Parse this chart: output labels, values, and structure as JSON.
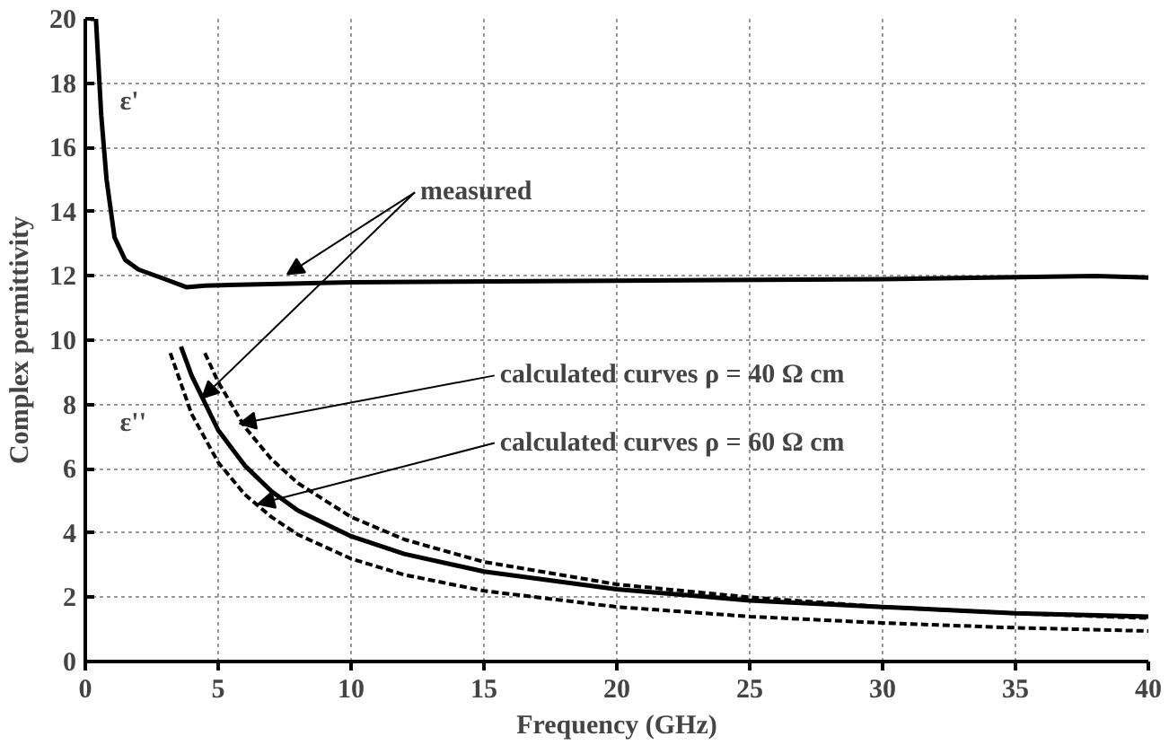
{
  "chart_data": {
    "type": "line",
    "xlabel": "Frequency (GHz)",
    "ylabel": "Complex permittivity",
    "xlim": [
      0,
      40
    ],
    "ylim": [
      0,
      20
    ],
    "xticks": [
      0,
      5,
      10,
      15,
      20,
      25,
      30,
      35,
      40
    ],
    "yticks": [
      0,
      2,
      4,
      6,
      8,
      10,
      12,
      14,
      16,
      18,
      20
    ],
    "grid": true,
    "marker": "none",
    "annotations": [
      "ε'",
      "ε''",
      {
        "text": "measured",
        "x": 7.6,
        "y": 12.05
      },
      {
        "text": "calculated curves ρ = 40 Ω cm",
        "x": 5.8,
        "y": 7.4
      },
      {
        "text": "calculated curves ρ = 60 Ω cm",
        "x": 6.5,
        "y": 4.9
      }
    ],
    "series": [
      {
        "color": "#000000",
        "line_style": "solid",
        "x": [
          0.2,
          0.4,
          0.6,
          0.8,
          1.1,
          1.5,
          2,
          3,
          3.8,
          4.5,
          10,
          20,
          30,
          38,
          40
        ],
        "values": [
          20,
          20,
          17,
          15,
          13.2,
          12.5,
          12.2,
          11.9,
          11.65,
          11.7,
          11.8,
          11.85,
          11.9,
          12,
          11.95
        ]
      },
      {
        "color": "#000000",
        "line_style": "solid",
        "x": [
          3.6,
          4,
          5,
          6,
          7,
          8,
          10,
          12,
          15,
          20,
          25,
          30,
          35,
          40
        ],
        "values": [
          9.8,
          8.9,
          7.2,
          6.1,
          5.3,
          4.7,
          3.9,
          3.35,
          2.8,
          2.25,
          1.9,
          1.7,
          1.5,
          1.4
        ]
      },
      {
        "color": "#000000",
        "line_style": "dashed",
        "x": [
          4.5,
          5,
          6,
          7,
          8,
          10,
          12,
          15,
          20,
          25,
          30,
          35,
          40
        ],
        "values": [
          9.6,
          8.7,
          7.3,
          6.3,
          5.55,
          4.5,
          3.8,
          3.1,
          2.4,
          2.0,
          1.7,
          1.5,
          1.35
        ]
      },
      {
        "color": "#000000",
        "line_style": "dashed",
        "x": [
          3.2,
          4,
          5,
          6,
          7,
          8,
          10,
          12,
          15,
          20,
          25,
          30,
          35,
          40
        ],
        "values": [
          9.6,
          7.7,
          6.2,
          5.2,
          4.5,
          3.95,
          3.2,
          2.7,
          2.2,
          1.7,
          1.4,
          1.2,
          1.05,
          0.95
        ]
      }
    ]
  }
}
